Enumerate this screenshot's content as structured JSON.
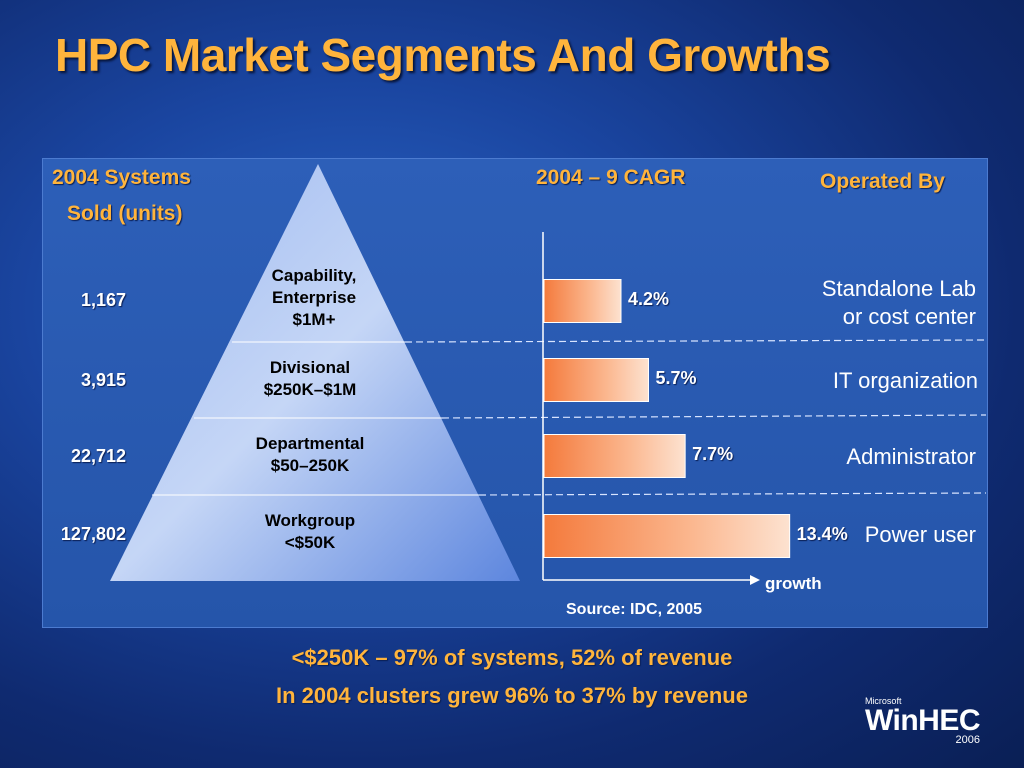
{
  "title": "HPC Market Segments And Growths",
  "headers": {
    "systems_line1": "2004 Systems",
    "systems_line2": "Sold (units)",
    "cagr": "2004 – 9 CAGR",
    "operated_by": "Operated By"
  },
  "segments": [
    {
      "units": "1,167",
      "label": [
        "Capability,",
        "Enterprise",
        "$1M+"
      ],
      "operator": [
        "Standalone Lab",
        "or cost center"
      ]
    },
    {
      "units": "3,915",
      "label": [
        "Divisional",
        "$250K–$1M"
      ],
      "operator": [
        "IT organization"
      ]
    },
    {
      "units": "22,712",
      "label": [
        "Departmental",
        "$50–250K"
      ],
      "operator": [
        "Administrator"
      ]
    },
    {
      "units": "127,802",
      "label": [
        "Workgroup",
        "<$50K"
      ],
      "operator": [
        "Power user"
      ]
    }
  ],
  "chart_data": {
    "type": "bar",
    "orientation": "horizontal",
    "categories": [
      "Capability, Enterprise $1M+",
      "Divisional $250K–$1M",
      "Departmental $50–250K",
      "Workgroup <$50K"
    ],
    "values": [
      4.2,
      5.7,
      7.7,
      13.4
    ],
    "value_labels": [
      "4.2%",
      "5.7%",
      "7.7%",
      "13.4%"
    ],
    "xlabel": "growth",
    "xlim": [
      0,
      18
    ],
    "bar_color": "#f47a3c"
  },
  "source": "Source:  IDC, 2005",
  "footer": {
    "line1": "<$250K – 97% of systems, 52% of revenue",
    "line2": "In 2004 clusters grew 96% to 37% by revenue"
  },
  "logo": {
    "brand": "Microsoft",
    "name": "WinHEC",
    "year": "2006"
  },
  "colors": {
    "accent": "#ffb43c",
    "background": "#1a45a0"
  }
}
